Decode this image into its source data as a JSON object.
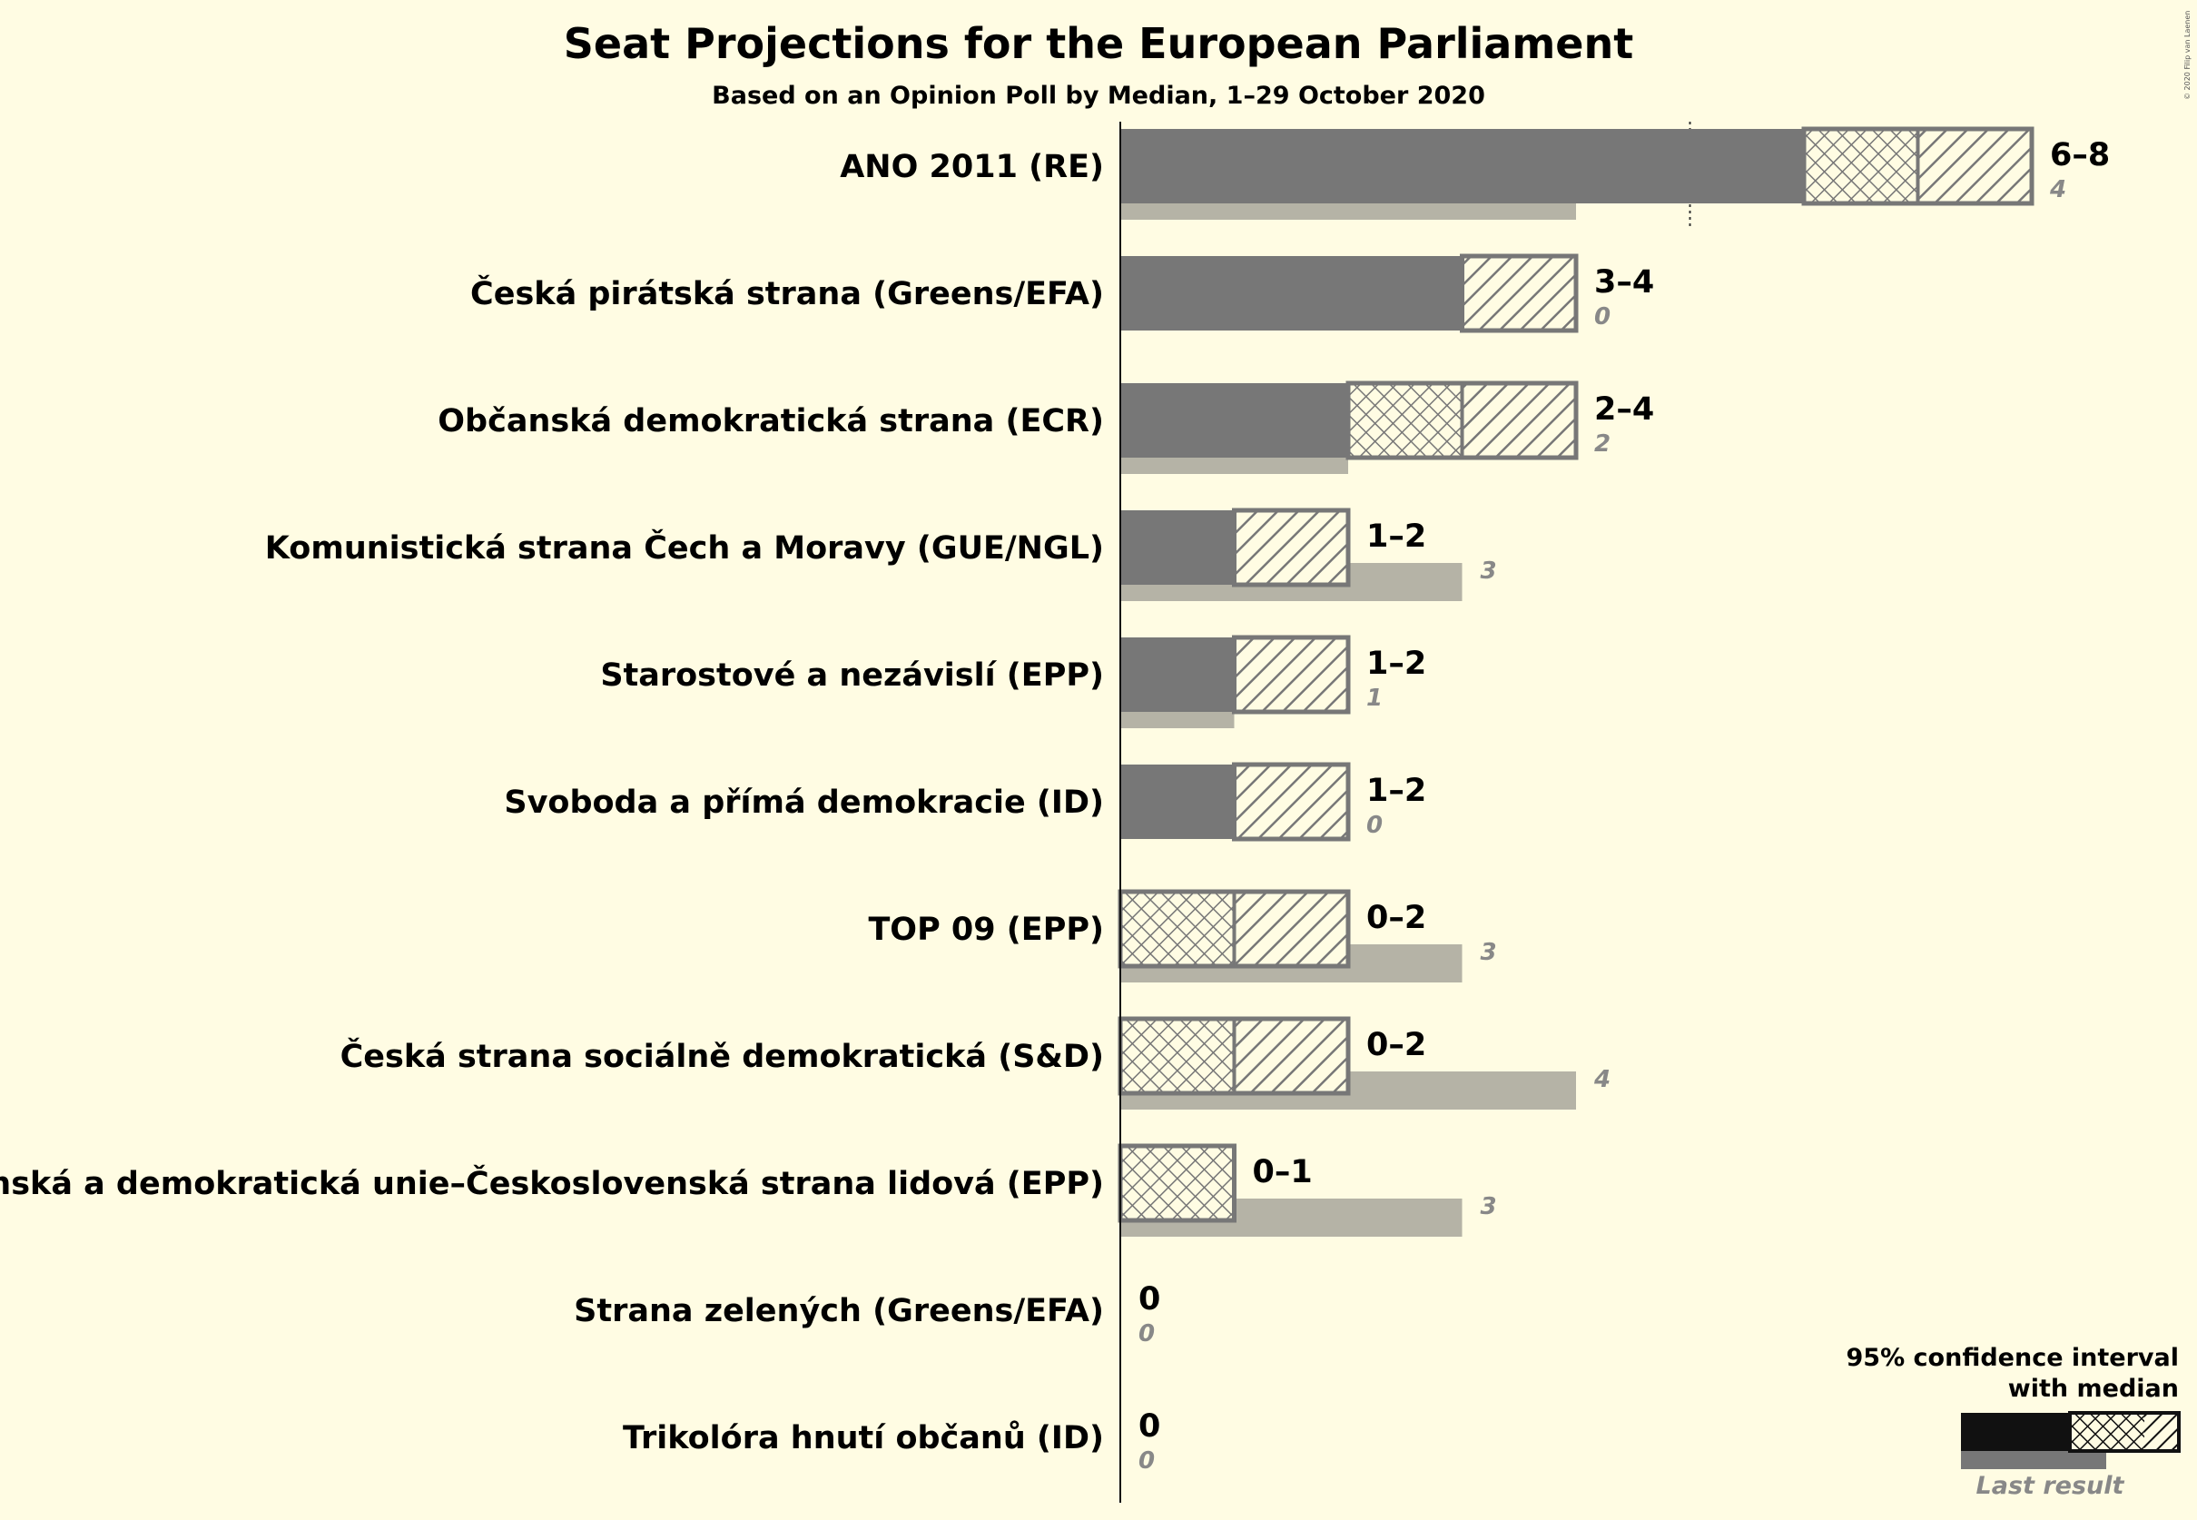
{
  "chart_data": {
    "type": "bar",
    "title": "Seat Projections for the European Parliament",
    "subtitle": "Based on an Opinion Poll by Median, 1–29 October 2020",
    "copyright": "© 2020 Filip van Laenen",
    "x_unit": "seats",
    "xlim": [
      0,
      8
    ],
    "majority_marker": 5,
    "parties": [
      {
        "name": "ANO 2011 (RE)",
        "range_label": "6–8",
        "median": 7,
        "ci_low": 6,
        "ci_high": 8,
        "last_result": 4
      },
      {
        "name": "Česká pirátská strana (Greens/EFA)",
        "range_label": "3–4",
        "median": 3,
        "ci_low": 3,
        "ci_high": 4,
        "last_result": 0
      },
      {
        "name": "Občanská demokratická strana (ECR)",
        "range_label": "2–4",
        "median": 3,
        "ci_low": 2,
        "ci_high": 4,
        "last_result": 2
      },
      {
        "name": "Komunistická strana Čech a Moravy (GUE/NGL)",
        "range_label": "1–2",
        "median": 1,
        "ci_low": 1,
        "ci_high": 2,
        "last_result": 3
      },
      {
        "name": "Starostové a nezávislí (EPP)",
        "range_label": "1–2",
        "median": 1,
        "ci_low": 1,
        "ci_high": 2,
        "last_result": 1
      },
      {
        "name": "Svoboda a přímá demokracie (ID)",
        "range_label": "1–2",
        "median": 1,
        "ci_low": 1,
        "ci_high": 2,
        "last_result": 0
      },
      {
        "name": "TOP 09 (EPP)",
        "range_label": "0–2",
        "median": 1,
        "ci_low": 0,
        "ci_high": 2,
        "last_result": 3
      },
      {
        "name": "Česká strana sociálně demokratická (S&D)",
        "range_label": "0–2",
        "median": 1,
        "ci_low": 0,
        "ci_high": 2,
        "last_result": 4
      },
      {
        "name": "Křesťanská a demokratická unie–Československá strana lidová (EPP)",
        "range_label": "0–1",
        "median": 1,
        "ci_low": 0,
        "ci_high": 1,
        "last_result": 3
      },
      {
        "name": "Strana zelených (Greens/EFA)",
        "range_label": "0",
        "median": 0,
        "ci_low": 0,
        "ci_high": 0,
        "last_result": 0
      },
      {
        "name": "Trikolóra hnutí občanů (ID)",
        "range_label": "0",
        "median": 0,
        "ci_low": 0,
        "ci_high": 0,
        "last_result": 0
      }
    ],
    "legend": {
      "line1": "95% confidence interval",
      "line2": "with median",
      "last_result_label": "Last result"
    },
    "colors": {
      "background": "#fffce3",
      "solid": "#777777",
      "last_result": "#b5b3a6",
      "legend_solid": "#111111",
      "text": "#111111",
      "last_text": "#888888"
    }
  }
}
